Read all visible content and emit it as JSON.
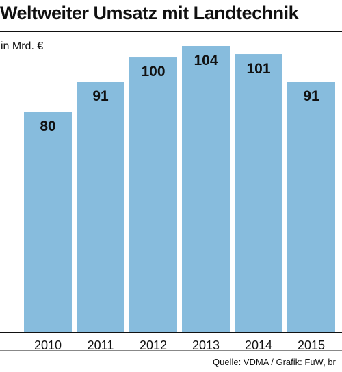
{
  "title": "Weltweiter Umsatz mit Landtechnik",
  "unit": "in Mrd. €",
  "source": "Quelle: VDMA / Grafik: FuW, br",
  "colors": {
    "bar": "#87bcdd",
    "text": "#111111",
    "axis": "#111111"
  },
  "chart_data": {
    "type": "bar",
    "categories": [
      "2010",
      "2011",
      "2012",
      "2013",
      "2014",
      "2015"
    ],
    "values": [
      80,
      91,
      100,
      104,
      101,
      91
    ],
    "title": "Weltweiter Umsatz mit Landtechnik",
    "ylabel": "in Mrd. €",
    "xlabel": "",
    "ylim": [
      0,
      104
    ],
    "grid": false,
    "legend": "none",
    "data_labels": true
  }
}
